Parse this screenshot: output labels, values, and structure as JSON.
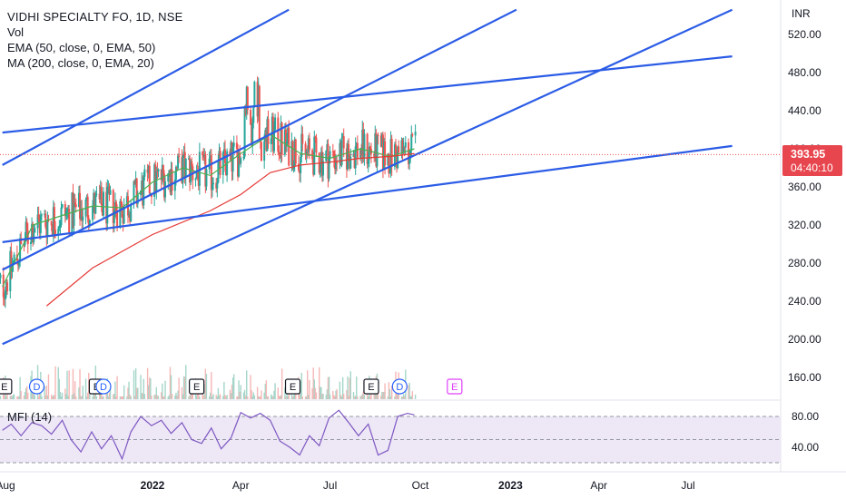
{
  "legend": {
    "symbol": "VIDHI SPECIALTY FO, 1D, NSE",
    "vol": "Vol",
    "ema": "EMA (50, close, 0, EMA, 50)",
    "ma": "MA (200, close, 0, EMA, 20)"
  },
  "price_tag": {
    "price": "393.95",
    "countdown": "04:40:10"
  },
  "mfi_label": "MFI (14)",
  "colors": {
    "up": "#26a69a",
    "down": "#ef5350",
    "trendline": "#2b5ce6",
    "ema50": "#4caf50",
    "ma200": "#e53935",
    "mfi": "#7e57c2",
    "mfi_band": "#ede7f6"
  },
  "chart_data": [
    {
      "type": "line",
      "title": "VIDHI SPECIALTY FO, 1D, NSE",
      "currency_label": "INR",
      "ylim": [
        140,
        540
      ],
      "y_ticks": [
        "520.00",
        "480.00",
        "440.00",
        "400.00",
        "360.00",
        "320.00",
        "280.00",
        "240.00",
        "200.00",
        "160.00"
      ],
      "x_tick_labels": [
        "Aug",
        "2022",
        "Apr",
        "Jul",
        "Oct",
        "2023",
        "Apr",
        "Jul"
      ],
      "x_tick_dates": [
        "2021-08-01",
        "2022-01-01",
        "2022-04-01",
        "2022-07-01",
        "2022-10-01",
        "2023-01-01",
        "2023-04-01",
        "2023-07-01"
      ],
      "last_price": 393.95,
      "series": [
        {
          "name": "EMA (50, close, 0, EMA, 50)",
          "x": [
            "2021-08-01",
            "2021-09-01",
            "2021-10-01",
            "2021-11-01",
            "2021-12-01",
            "2022-01-01",
            "2022-02-01",
            "2022-03-01",
            "2022-04-01",
            "2022-05-01",
            "2022-06-01",
            "2022-07-01",
            "2022-08-01",
            "2022-09-01",
            "2022-09-25"
          ],
          "y": [
            255,
            320,
            330,
            340,
            338,
            365,
            380,
            372,
            395,
            415,
            395,
            390,
            400,
            392,
            400
          ]
        },
        {
          "name": "MA (200, close, 0, EMA, 20)",
          "x": [
            "2021-09-15",
            "2021-11-01",
            "2022-01-01",
            "2022-03-01",
            "2022-04-01",
            "2022-05-01",
            "2022-06-01",
            "2022-07-01",
            "2022-08-01",
            "2022-09-01",
            "2022-09-25"
          ],
          "y": [
            235,
            275,
            310,
            335,
            352,
            375,
            383,
            386,
            390,
            392,
            395
          ]
        }
      ],
      "trendlines": [
        {
          "x": [
            "2021-08-01",
            "2022-05-20"
          ],
          "y": [
            383,
            546
          ]
        },
        {
          "x": [
            "2021-08-01",
            "2023-08-15"
          ],
          "y": [
            417,
            497
          ]
        },
        {
          "x": [
            "2021-08-01",
            "2023-01-07"
          ],
          "y": [
            273,
            546
          ]
        },
        {
          "x": [
            "2021-08-01",
            "2023-08-15"
          ],
          "y": [
            302,
            403
          ]
        },
        {
          "x": [
            "2021-08-01",
            "2023-08-15"
          ],
          "y": [
            195,
            546
          ]
        }
      ],
      "events": [
        {
          "label": "E",
          "date": "2021-08-03"
        },
        {
          "label": "D",
          "date": "2021-09-05"
        },
        {
          "label": "E",
          "date": "2021-11-05"
        },
        {
          "label": "D",
          "date": "2021-11-12"
        },
        {
          "label": "E",
          "date": "2022-02-15"
        },
        {
          "label": "E",
          "date": "2022-05-24"
        },
        {
          "label": "E",
          "date": "2022-08-12"
        },
        {
          "label": "D",
          "date": "2022-09-10"
        },
        {
          "label": "E",
          "date": "2022-11-05"
        }
      ]
    },
    {
      "type": "line",
      "title": "MFI (14)",
      "ylim": [
        25,
        95
      ],
      "y_ticks": [
        "80.00",
        "40.00"
      ],
      "guide_levels": [
        80,
        50,
        20
      ],
      "series": [
        {
          "name": "MFI (14)",
          "x": [
            "2021-08-01",
            "2021-08-10",
            "2021-08-20",
            "2021-08-31",
            "2021-09-10",
            "2021-09-20",
            "2021-10-01",
            "2021-10-10",
            "2021-10-20",
            "2021-10-31",
            "2021-11-10",
            "2021-11-20",
            "2021-12-01",
            "2021-12-10",
            "2021-12-20",
            "2021-12-31",
            "2022-01-10",
            "2022-01-20",
            "2022-01-31",
            "2022-02-10",
            "2022-02-20",
            "2022-03-02",
            "2022-03-12",
            "2022-03-22",
            "2022-04-01",
            "2022-04-11",
            "2022-04-21",
            "2022-05-01",
            "2022-05-11",
            "2022-05-21",
            "2022-05-31",
            "2022-06-10",
            "2022-06-20",
            "2022-06-30",
            "2022-07-10",
            "2022-07-20",
            "2022-07-30",
            "2022-08-09",
            "2022-08-19",
            "2022-08-29",
            "2022-09-08",
            "2022-09-18",
            "2022-09-25"
          ],
          "y": [
            62,
            70,
            55,
            72,
            68,
            57,
            75,
            50,
            34,
            60,
            38,
            55,
            25,
            60,
            80,
            68,
            75,
            58,
            72,
            50,
            45,
            65,
            38,
            52,
            85,
            78,
            84,
            75,
            48,
            40,
            30,
            55,
            42,
            78,
            88,
            72,
            55,
            70,
            30,
            36,
            80,
            84,
            82
          ]
        }
      ]
    }
  ]
}
